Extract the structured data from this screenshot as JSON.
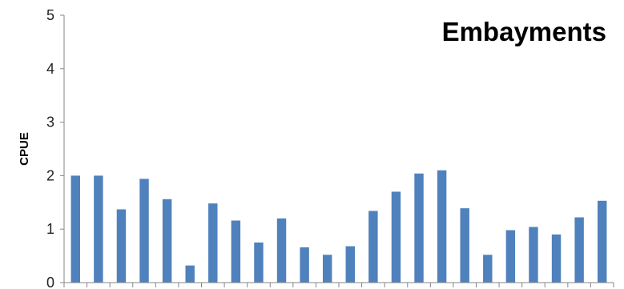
{
  "chart_data": {
    "type": "bar",
    "title": "Embayments",
    "ylabel": "CPUE",
    "xlabel": "",
    "ylim": [
      0,
      5
    ],
    "yticks": [
      "0",
      "1",
      "2",
      "3",
      "4",
      "5"
    ],
    "grid": false,
    "bar_color": "#4f81bd",
    "values": [
      2.0,
      2.0,
      1.37,
      1.94,
      1.56,
      0.32,
      1.48,
      1.16,
      0.75,
      1.2,
      0.66,
      0.52,
      0.68,
      1.34,
      1.7,
      2.04,
      2.1,
      1.39,
      0.52,
      0.98,
      1.04,
      0.9,
      1.22,
      1.53
    ]
  }
}
